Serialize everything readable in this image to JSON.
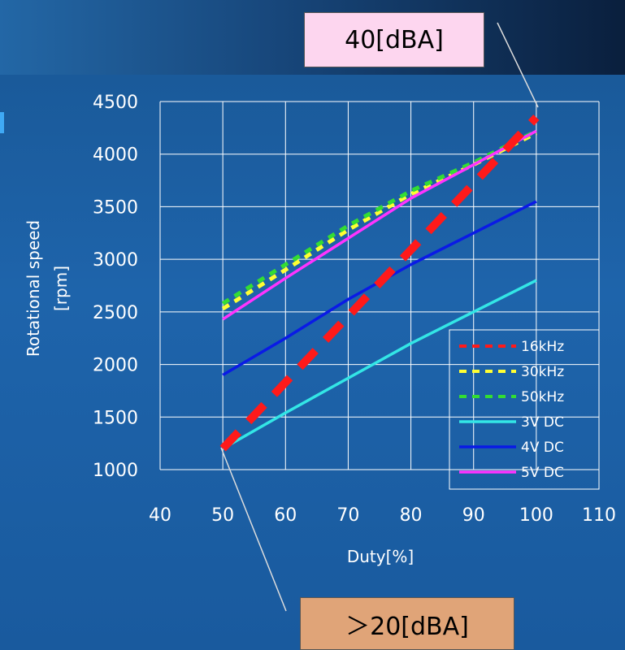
{
  "callouts": {
    "top": "40[dBA]",
    "bottom": "＞20[dBA]"
  },
  "colors": {
    "16kHz": "#ff1a1a",
    "30kHz": "#ffff33",
    "50kHz": "#33dd33",
    "3V DC": "#33e6e6",
    "4V DC": "#0a1ae6",
    "5V DC": "#ff33ff"
  },
  "chart_data": {
    "type": "line",
    "xlabel": "Duty[%]",
    "ylabel": "Rotational speed\n[rpm]",
    "xlim": [
      40,
      110
    ],
    "ylim": [
      1000,
      4500
    ],
    "xticks": [
      40,
      50,
      60,
      70,
      80,
      90,
      100,
      110
    ],
    "yticks": [
      1000,
      1500,
      2000,
      2500,
      3000,
      3500,
      4000,
      4500
    ],
    "grid": true,
    "legend_position": "bottom-right",
    "series": [
      {
        "name": "16kHz",
        "style": "dashed",
        "x": [
          50,
          100
        ],
        "y": [
          1200,
          4350
        ]
      },
      {
        "name": "30kHz",
        "style": "dotted",
        "x": [
          50,
          60,
          70,
          80,
          90,
          100
        ],
        "y": [
          2530,
          2900,
          3280,
          3620,
          3900,
          4200
        ]
      },
      {
        "name": "50kHz",
        "style": "dotted",
        "x": [
          50,
          60,
          70,
          80,
          90,
          100
        ],
        "y": [
          2580,
          2950,
          3320,
          3650,
          3920,
          4220
        ]
      },
      {
        "name": "3V DC",
        "style": "solid",
        "x": [
          50,
          60,
          70,
          80,
          90,
          100
        ],
        "y": [
          1200,
          1540,
          1870,
          2200,
          2500,
          2800
        ]
      },
      {
        "name": "4V DC",
        "style": "solid",
        "x": [
          50,
          60,
          70,
          80,
          90,
          100
        ],
        "y": [
          1900,
          2250,
          2620,
          2950,
          3250,
          3550
        ]
      },
      {
        "name": "5V DC",
        "style": "solid",
        "x": [
          50,
          60,
          70,
          80,
          90,
          100
        ],
        "y": [
          2430,
          2820,
          3200,
          3580,
          3900,
          4220
        ]
      }
    ]
  }
}
